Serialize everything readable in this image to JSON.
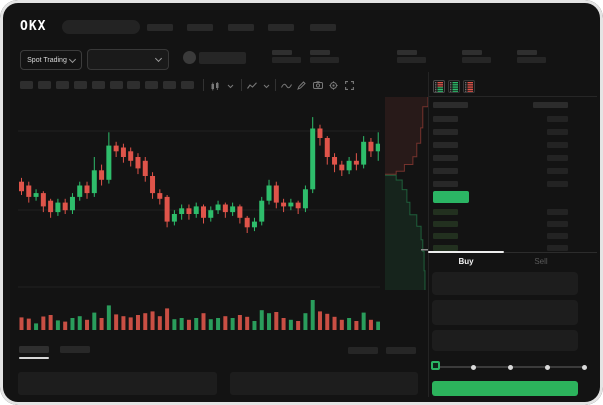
{
  "header": {
    "logo": "OKX",
    "nav_placeholder_count": 5
  },
  "subheader": {
    "market_selector_label": "Spot Trading",
    "stats_group_count": 5
  },
  "toolbar": {
    "timeframe_slot_count": 10,
    "icons": [
      "candle-interval",
      "chevron-down",
      "indicators",
      "chevron-down",
      "wave-line",
      "pencil",
      "camera",
      "gear",
      "expand"
    ]
  },
  "colors": {
    "up": "#2ebd6b",
    "down": "#df544a",
    "up_volume": "#2a9d5c",
    "down_volume": "#c94f44",
    "accent_green": "#2cb35c",
    "price_highlight": "#2bb564",
    "bid_row_tint": "#22301f",
    "grid": "#202020",
    "depth_ask_fill": "rgba(223,84,74,0.10)",
    "depth_ask_line": "rgba(223,84,74,0.45)",
    "depth_bid_fill": "rgba(46,189,107,0.10)",
    "depth_bid_line": "rgba(46,189,107,0.42)"
  },
  "chart_data": {
    "type": "candlestick",
    "title": "",
    "ylim": [
      0,
      100
    ],
    "gridline_values": [
      83.7,
      42.1,
      1.6
    ],
    "candles": [
      [
        57,
        52,
        50,
        59
      ],
      [
        55,
        49,
        46,
        57
      ],
      [
        49,
        51,
        47,
        53
      ],
      [
        51,
        44,
        41,
        52
      ],
      [
        47,
        41,
        38,
        48
      ],
      [
        41,
        46,
        39,
        48
      ],
      [
        46,
        42,
        40,
        48
      ],
      [
        42,
        49,
        40,
        51
      ],
      [
        49,
        55,
        47,
        57
      ],
      [
        55,
        51,
        48,
        57
      ],
      [
        51,
        63,
        49,
        70
      ],
      [
        63,
        58,
        55,
        66
      ],
      [
        58,
        76,
        56,
        83
      ],
      [
        76,
        73,
        70,
        78
      ],
      [
        75,
        70,
        67,
        77
      ],
      [
        73,
        68,
        65,
        75
      ],
      [
        70,
        64,
        61,
        72
      ],
      [
        68,
        60,
        57,
        70
      ],
      [
        60,
        51,
        48,
        62
      ],
      [
        51,
        48,
        45,
        53
      ],
      [
        49,
        36,
        33,
        50
      ],
      [
        36,
        40,
        34,
        42
      ],
      [
        40,
        43,
        37,
        45
      ],
      [
        43,
        40,
        37,
        45
      ],
      [
        40,
        44,
        38,
        46
      ],
      [
        44,
        38,
        35,
        45
      ],
      [
        38,
        42,
        36,
        44
      ],
      [
        42,
        45,
        40,
        47
      ],
      [
        45,
        41,
        38,
        46
      ],
      [
        41,
        44,
        39,
        46
      ],
      [
        44,
        38,
        35,
        45
      ],
      [
        38,
        33,
        30,
        39
      ],
      [
        33,
        36,
        31,
        38
      ],
      [
        36,
        47,
        34,
        49
      ],
      [
        47,
        55,
        45,
        58
      ],
      [
        55,
        46,
        43,
        57
      ],
      [
        46,
        44,
        41,
        48
      ],
      [
        44,
        46,
        42,
        48
      ],
      [
        46,
        43,
        40,
        47
      ],
      [
        43,
        53,
        41,
        55
      ],
      [
        53,
        85,
        51,
        91
      ],
      [
        85,
        80,
        76,
        87
      ],
      [
        80,
        70,
        66,
        81
      ],
      [
        70,
        66,
        62,
        72
      ],
      [
        66,
        63,
        60,
        68
      ],
      [
        63,
        68,
        61,
        70
      ],
      [
        68,
        66,
        63,
        72
      ],
      [
        66,
        78,
        64,
        81
      ],
      [
        78,
        73,
        70,
        80
      ],
      [
        73,
        77,
        68,
        83
      ]
    ],
    "volumes": [
      42,
      38,
      22,
      45,
      50,
      32,
      28,
      40,
      46,
      34,
      58,
      40,
      82,
      52,
      46,
      42,
      50,
      56,
      62,
      46,
      72,
      36,
      40,
      34,
      40,
      56,
      36,
      40,
      46,
      40,
      50,
      44,
      30,
      66,
      56,
      60,
      40,
      34,
      30,
      56,
      100,
      62,
      54,
      44,
      34,
      40,
      30,
      58,
      34,
      28
    ],
    "depth": {
      "asks_line": [
        [
          1.0,
          0.0
        ],
        [
          1.0,
          0.05
        ],
        [
          0.88,
          0.05
        ],
        [
          0.88,
          0.16
        ],
        [
          0.83,
          0.16
        ],
        [
          0.83,
          0.24
        ],
        [
          0.74,
          0.24
        ],
        [
          0.74,
          0.31
        ],
        [
          0.65,
          0.31
        ],
        [
          0.65,
          0.35
        ],
        [
          0.45,
          0.35
        ],
        [
          0.45,
          0.385
        ],
        [
          0.26,
          0.385
        ],
        [
          0.26,
          0.4
        ],
        [
          0.0,
          0.4
        ]
      ],
      "bids_line": [
        [
          0.0,
          0.405
        ],
        [
          0.26,
          0.405
        ],
        [
          0.26,
          0.43
        ],
        [
          0.4,
          0.43
        ],
        [
          0.4,
          0.48
        ],
        [
          0.51,
          0.48
        ],
        [
          0.51,
          0.545
        ],
        [
          0.58,
          0.545
        ],
        [
          0.58,
          0.61
        ],
        [
          0.74,
          0.61
        ],
        [
          0.74,
          0.67
        ],
        [
          0.84,
          0.67
        ],
        [
          0.84,
          0.74
        ],
        [
          0.88,
          0.74
        ],
        [
          0.88,
          0.8
        ],
        [
          0.91,
          0.8
        ],
        [
          0.91,
          0.9
        ],
        [
          0.93,
          0.9
        ],
        [
          0.93,
          1.0
        ]
      ]
    }
  },
  "orderbook": {
    "view_toggles": [
      {
        "name": "book-combined-icon",
        "rows": [
          "d",
          "d",
          "d",
          "u",
          "u",
          "u"
        ]
      },
      {
        "name": "book-bids-icon",
        "rows": [
          "u",
          "u",
          "u",
          "u",
          "u",
          "u"
        ]
      },
      {
        "name": "book-asks-icon",
        "rows": [
          "d",
          "d",
          "d",
          "d",
          "d",
          "d"
        ]
      }
    ],
    "ask_row_count": 6,
    "bid_row_count": 4
  },
  "trade_panel": {
    "tabs": [
      {
        "label": "Buy",
        "active": true
      },
      {
        "label": "Sell",
        "active": false
      }
    ],
    "input_count": 3,
    "slider": {
      "value_percent": 0,
      "stop_count": 5
    }
  }
}
